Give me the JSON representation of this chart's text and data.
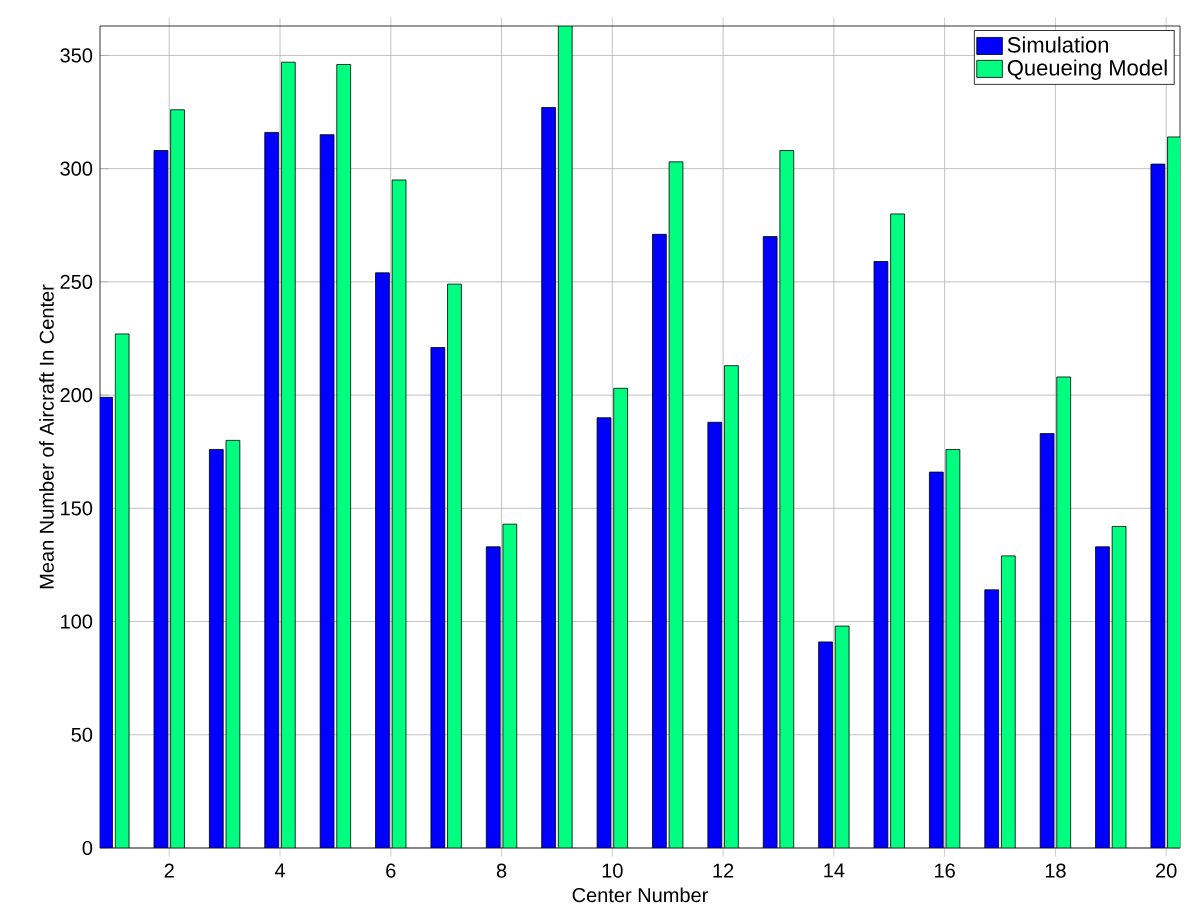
{
  "chart_data": {
    "type": "bar",
    "xlabel": "Center Number",
    "ylabel": "Mean Number of Aircraft In Center",
    "x": [
      1,
      2,
      3,
      4,
      5,
      6,
      7,
      8,
      9,
      10,
      11,
      12,
      13,
      14,
      15,
      16,
      17,
      18,
      19,
      20
    ],
    "series": [
      {
        "name": "Simulation",
        "color": "#0000ff",
        "values": [
          199,
          308,
          176,
          316,
          315,
          254,
          221,
          133,
          327,
          190,
          271,
          188,
          270,
          91,
          259,
          166,
          114,
          183,
          133,
          302
        ]
      },
      {
        "name": "Queueing Model",
        "color": "#00ff80",
        "values": [
          227,
          326,
          180,
          347,
          346,
          295,
          249,
          143,
          363,
          203,
          303,
          213,
          308,
          98,
          280,
          176,
          129,
          208,
          142,
          314
        ]
      }
    ],
    "xlim": [
      0.75,
      20.25
    ],
    "ylim": [
      0,
      363
    ],
    "xticks": [
      2,
      4,
      6,
      8,
      10,
      12,
      14,
      16,
      18,
      20
    ],
    "yticks": [
      0,
      50,
      100,
      150,
      200,
      250,
      300,
      350
    ],
    "grid": true,
    "legend": "top right"
  }
}
